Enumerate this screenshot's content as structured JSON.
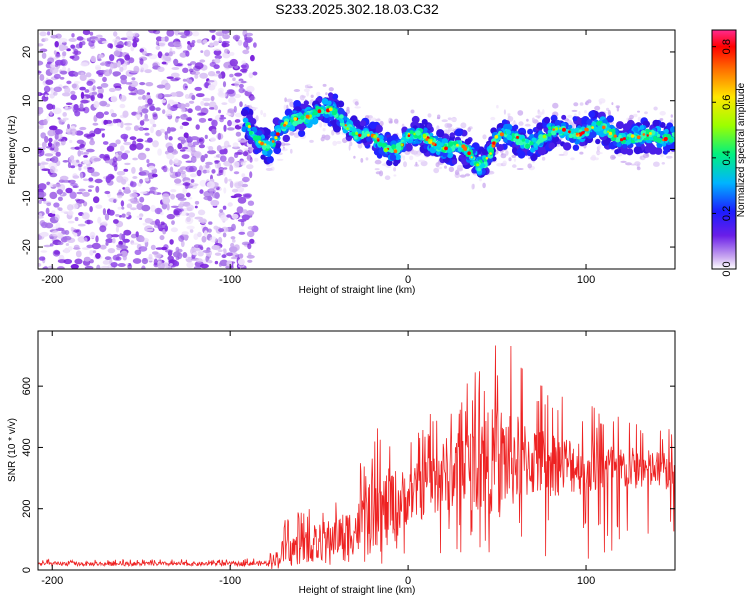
{
  "title": "S233.2025.302.18.03.C32",
  "chart_data": [
    {
      "type": "heatmap",
      "name": "spectrogram",
      "xlabel": "Height of straight line (km)",
      "ylabel": "Frequency (Hz)",
      "xlim": [
        -208,
        150
      ],
      "ylim": [
        -24.5,
        24.5
      ],
      "x_ticks": [
        -200,
        -100,
        0,
        100
      ],
      "x_tick_labels": [
        "-200",
        "-100",
        "0",
        "100"
      ],
      "y_ticks": [
        -20,
        -10,
        0,
        10,
        20
      ],
      "y_tick_labels": [
        "-20",
        "-10",
        "0",
        "10",
        "20"
      ],
      "noise_region_x": [
        -208,
        -90
      ],
      "ridge_x": [
        -92,
        -85,
        -78,
        -70,
        -60,
        -50,
        -40,
        -30,
        -20,
        -12,
        -5,
        0,
        10,
        20,
        30,
        40,
        45,
        50,
        60,
        70,
        80,
        90,
        100,
        110,
        120,
        130,
        140,
        150
      ],
      "ridge_freq_hz": [
        5,
        3,
        1,
        4,
        7,
        8,
        7,
        4,
        2,
        0,
        1,
        3,
        2,
        1,
        0,
        -3,
        -1,
        3,
        2,
        2,
        3,
        4,
        4,
        4,
        3,
        2,
        3,
        3
      ],
      "colorbar": {
        "label": "Normalized spectral amplitude",
        "range": [
          0,
          0.86
        ],
        "ticks": [
          0.0,
          0.2,
          0.4,
          0.6,
          0.8
        ],
        "tick_labels": [
          "0.0",
          "0.2",
          "0.4",
          "0.6",
          "0.8"
        ]
      }
    },
    {
      "type": "line",
      "name": "snr",
      "color": "#ee2222",
      "xlabel": "Height of straight line (km)",
      "ylabel": "SNR (10 * v/v)",
      "xlim": [
        -208,
        150
      ],
      "ylim": [
        0,
        780
      ],
      "x_ticks": [
        -200,
        -100,
        0,
        100
      ],
      "x_tick_labels": [
        "-200",
        "-100",
        "0",
        "100"
      ],
      "y_ticks": [
        0,
        200,
        400,
        600
      ],
      "y_tick_labels": [
        "0",
        "200",
        "400",
        "600"
      ],
      "x": [
        -208,
        -150,
        -100,
        -80,
        -75,
        -70,
        -60,
        -50,
        -40,
        -30,
        -20,
        -10,
        0,
        10,
        20,
        30,
        40,
        50,
        55,
        60,
        70,
        80,
        90,
        100,
        110,
        120,
        130,
        140,
        150
      ],
      "mean": [
        20,
        20,
        20,
        22,
        35,
        60,
        75,
        90,
        110,
        130,
        170,
        200,
        240,
        270,
        310,
        330,
        345,
        360,
        365,
        360,
        355,
        350,
        345,
        340,
        335,
        330,
        330,
        325,
        320
      ],
      "peak_envelope": [
        35,
        35,
        35,
        40,
        80,
        160,
        200,
        230,
        260,
        310,
        450,
        500,
        430,
        500,
        580,
        620,
        690,
        760,
        775,
        700,
        620,
        600,
        560,
        560,
        520,
        500,
        480,
        470,
        460
      ]
    }
  ]
}
